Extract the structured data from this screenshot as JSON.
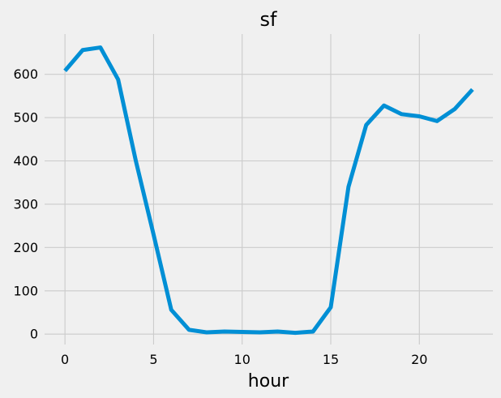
{
  "chart_data": {
    "type": "line",
    "title": "sf",
    "xlabel": "hour",
    "ylabel": "",
    "grid": true,
    "xlim": [
      -1.15,
      24.15
    ],
    "ylim": [
      -24,
      693
    ],
    "xticks": [
      0,
      5,
      10,
      15,
      20
    ],
    "yticks": [
      0,
      100,
      200,
      300,
      400,
      500,
      600
    ],
    "x": [
      0,
      1,
      2,
      3,
      4,
      5,
      6,
      7,
      8,
      9,
      10,
      11,
      12,
      13,
      14,
      15,
      16,
      17,
      18,
      19,
      20,
      21,
      22,
      23
    ],
    "series": [
      {
        "color": "#008fd5",
        "values": [
          608,
          656,
          662,
          588,
          400,
          230,
          56,
          10,
          4,
          6,
          5,
          4,
          6,
          3,
          6,
          62,
          340,
          483,
          528,
          508,
          503,
          492,
          520,
          565
        ]
      }
    ]
  }
}
